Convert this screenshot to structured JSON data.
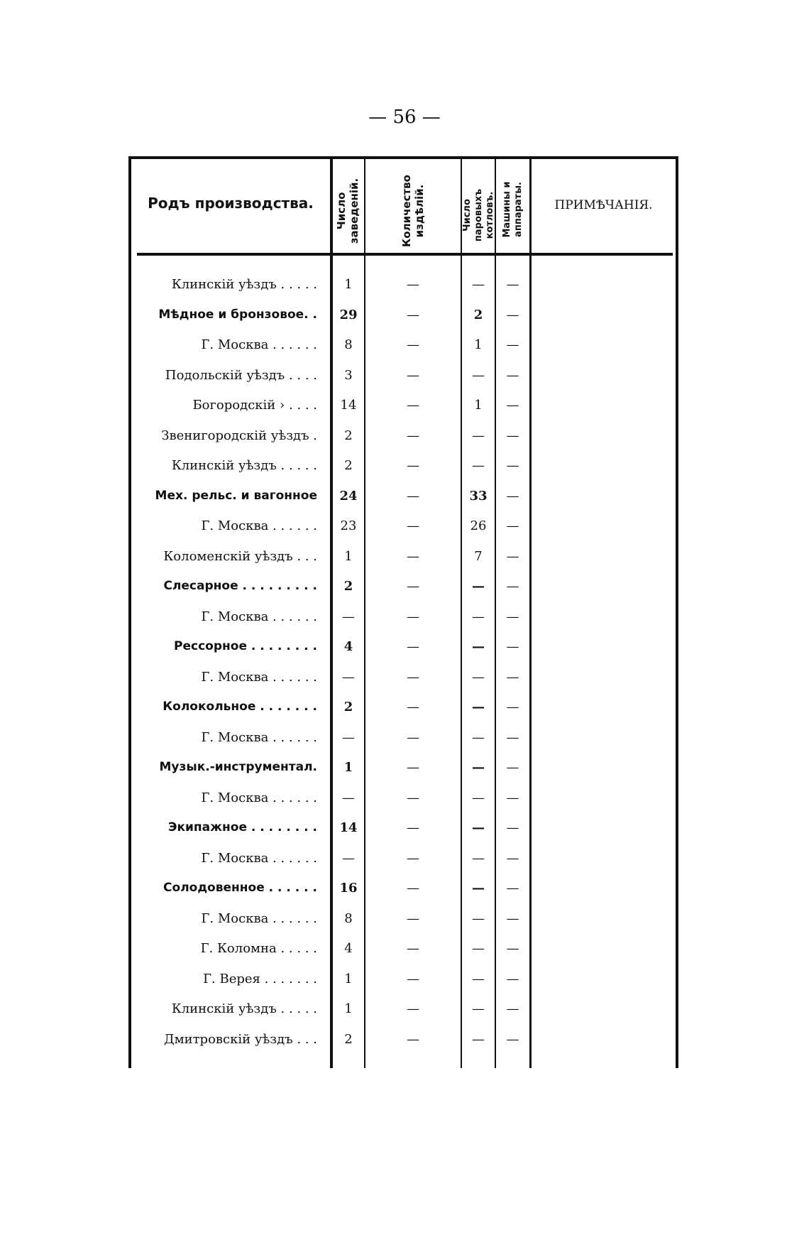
{
  "page_number": "— 56 —",
  "headers": {
    "production": "Родъ производства.",
    "establishments": "Число заведеній.",
    "products": "Количество издѣлій.",
    "boilers": "Число паровыхъ котловъ.",
    "machines": "Машины и аппараты.",
    "notes": "ПРИМѢЧАНІЯ."
  },
  "rows": [
    {
      "name": "Клинскій уѣздъ . . . . .",
      "bold": false,
      "est": "1",
      "prod": "—",
      "boil": "—",
      "mach": "—"
    },
    {
      "name": "Мѣдное и бронзовое. .",
      "bold": true,
      "est": "29",
      "prod": "—",
      "boil": "2",
      "mach": "—"
    },
    {
      "name": "Г. Москва . . . . . .",
      "bold": false,
      "est": "8",
      "prod": "—",
      "boil": "1",
      "mach": "—"
    },
    {
      "name": "Подольскій уѣздъ . . . .",
      "bold": false,
      "est": "3",
      "prod": "—",
      "boil": "—",
      "mach": "—"
    },
    {
      "name": "Богородскій  ›  . . . .",
      "bold": false,
      "est": "14",
      "prod": "—",
      "boil": "1",
      "mach": "—"
    },
    {
      "name": "Звенигородскій уѣздъ .",
      "bold": false,
      "est": "2",
      "prod": "—",
      "boil": "—",
      "mach": "—"
    },
    {
      "name": "Клинскій уѣздъ . . . . .",
      "bold": false,
      "est": "2",
      "prod": "—",
      "boil": "—",
      "mach": "—"
    },
    {
      "name": "Мех. рельс. и вагонное",
      "bold": true,
      "est": "24",
      "prod": "—",
      "boil": "33",
      "mach": "—"
    },
    {
      "name": "Г. Москва . . . . . .",
      "bold": false,
      "est": "23",
      "prod": "—",
      "boil": "26",
      "mach": "—"
    },
    {
      "name": "Коломенскій уѣздъ . . .",
      "bold": false,
      "est": "1",
      "prod": "—",
      "boil": "7",
      "mach": "—"
    },
    {
      "name": "Слесарное . . . . . . . . .",
      "bold": true,
      "est": "2",
      "prod": "—",
      "boil": "—",
      "mach": "—"
    },
    {
      "name": "Г. Москва . . . . . .",
      "bold": false,
      "est": "—",
      "prod": "—",
      "boil": "—",
      "mach": "—"
    },
    {
      "name": "Рессорное . . . . . . . .",
      "bold": true,
      "est": "4",
      "prod": "—",
      "boil": "—",
      "mach": "—"
    },
    {
      "name": "Г. Москва . . . . . .",
      "bold": false,
      "est": "—",
      "prod": "—",
      "boil": "—",
      "mach": "—"
    },
    {
      "name": "Колокольное . . . . . . .",
      "bold": true,
      "est": "2",
      "prod": "—",
      "boil": "—",
      "mach": "—"
    },
    {
      "name": "Г. Москва . . . . . .",
      "bold": false,
      "est": "—",
      "prod": "—",
      "boil": "—",
      "mach": "—"
    },
    {
      "name": "Музык.-инструментал.",
      "bold": true,
      "est": "1",
      "prod": "—",
      "boil": "—",
      "mach": "—"
    },
    {
      "name": "Г. Москва . . . . . .",
      "bold": false,
      "est": "—",
      "prod": "—",
      "boil": "—",
      "mach": "—"
    },
    {
      "name": "Экипажное . . . . . . . .",
      "bold": true,
      "est": "14",
      "prod": "—",
      "boil": "—",
      "mach": "—"
    },
    {
      "name": "Г. Москва . . . . . .",
      "bold": false,
      "est": "—",
      "prod": "—",
      "boil": "—",
      "mach": "—"
    },
    {
      "name": "Солодовенное . . . . . .",
      "bold": true,
      "est": "16",
      "prod": "—",
      "boil": "—",
      "mach": "—"
    },
    {
      "name": "Г. Москва . . . . . .",
      "bold": false,
      "est": "8",
      "prod": "—",
      "boil": "—",
      "mach": "—"
    },
    {
      "name": "Г. Коломна . . . . .",
      "bold": false,
      "est": "4",
      "prod": "—",
      "boil": "—",
      "mach": "—"
    },
    {
      "name": "Г. Верея . . . . . . .",
      "bold": false,
      "est": "1",
      "prod": "—",
      "boil": "—",
      "mach": "—"
    },
    {
      "name": "Клинскій уѣздъ . . . . .",
      "bold": false,
      "est": "1",
      "prod": "—",
      "boil": "—",
      "mach": "—"
    },
    {
      "name": "Дмитровскій уѣздъ . . .",
      "bold": false,
      "est": "2",
      "prod": "—",
      "boil": "—",
      "mach": "—"
    }
  ]
}
